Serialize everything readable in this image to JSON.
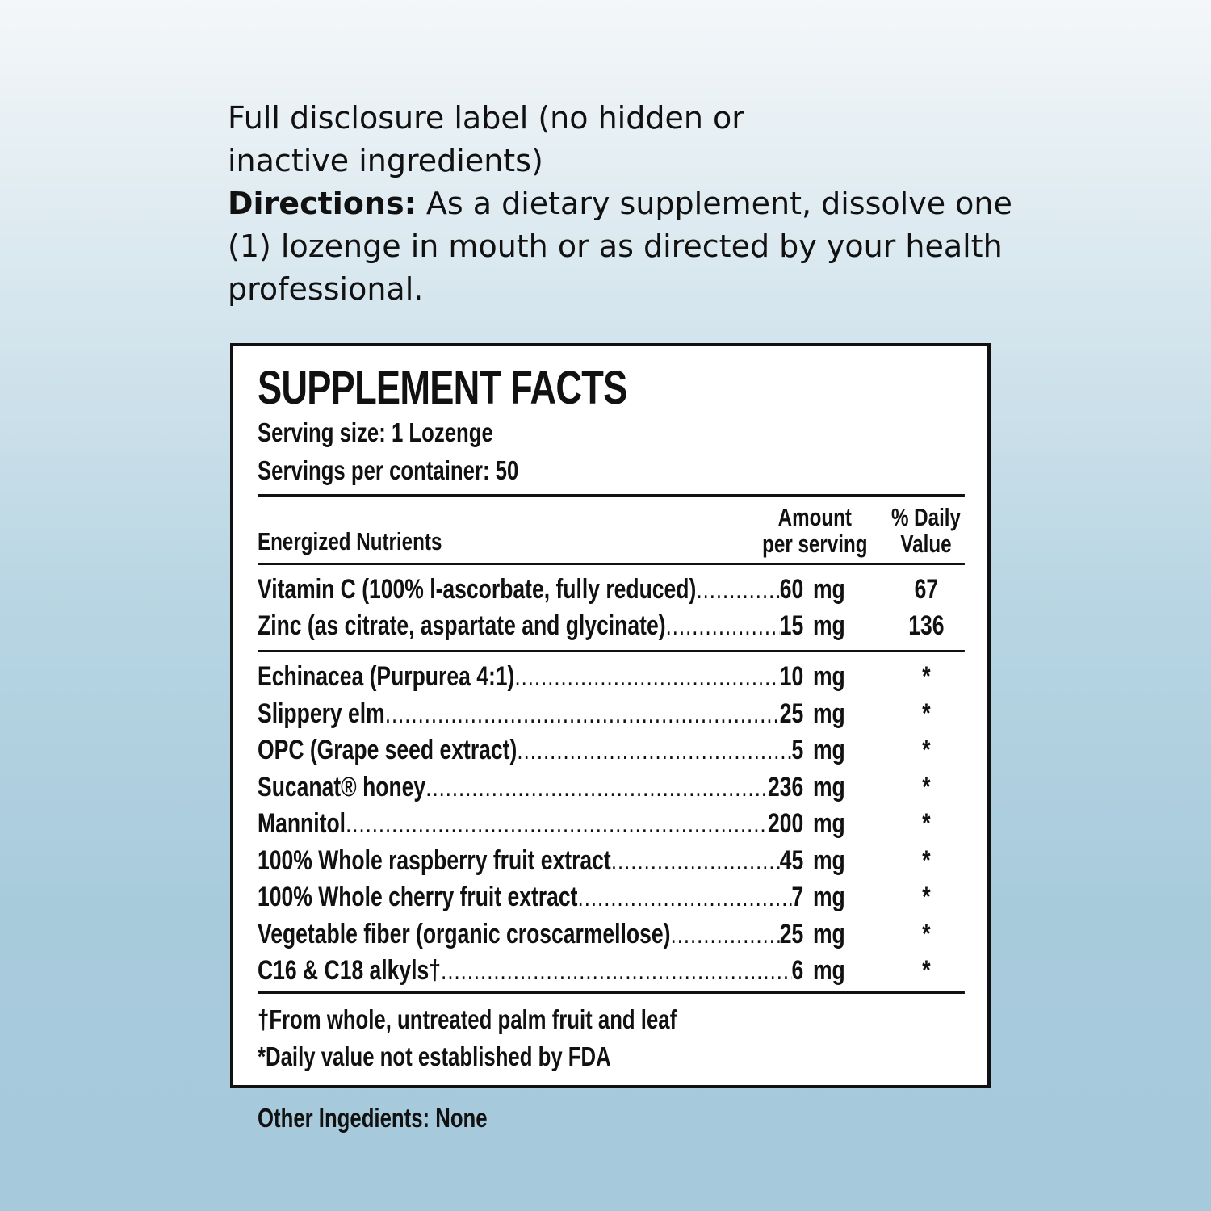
{
  "intro": {
    "line1": "Full disclosure label (no hidden or inactive ingredients)",
    "directions_label": "Directions:",
    "directions_text": " As a dietary supplement, dissolve one (1) lozenge in mouth or as directed by your health professional."
  },
  "facts": {
    "title": "SUPPLEMENT FACTS",
    "serving_size": "Serving size:  1 Lozenge",
    "servings_per_container": "Servings per container: 50",
    "headers": {
      "nutrients": "Energized Nutrients",
      "amount_line1": "Amount",
      "amount_line2": "per serving",
      "dv_line1": "% Daily",
      "dv_line2": "Value"
    },
    "group1": [
      {
        "name": "Vitamin C (100% l-ascorbate, fully reduced)",
        "amount": "60",
        "unit": "mg",
        "dv": "67"
      },
      {
        "name": "Zinc (as citrate, aspartate and glycinate)",
        "amount": "15",
        "unit": "mg",
        "dv": "136"
      }
    ],
    "group2": [
      {
        "name": "Echinacea (Purpurea 4:1)",
        "amount": "10",
        "unit": "mg",
        "dv": "*"
      },
      {
        "name": "Slippery elm",
        "amount": "25",
        "unit": "mg",
        "dv": "*"
      },
      {
        "name": "OPC (Grape seed extract)",
        "amount": "5",
        "unit": "mg",
        "dv": "*"
      },
      {
        "name": "Sucanat® honey",
        "amount": "236",
        "unit": "mg",
        "dv": "*"
      },
      {
        "name": "Mannitol",
        "amount": "200",
        "unit": "mg",
        "dv": "*"
      },
      {
        "name": "100% Whole raspberry fruit extract",
        "amount": "45",
        "unit": "mg",
        "dv": "*"
      },
      {
        "name": "100% Whole cherry fruit extract",
        "amount": "7",
        "unit": "mg",
        "dv": "*"
      },
      {
        "name": "Vegetable fiber (organic croscarmellose)",
        "amount": "25",
        "unit": "mg",
        "dv": "*"
      },
      {
        "name": "C16 & C18 alkyls†",
        "amount": "6",
        "unit": "mg",
        "dv": "*"
      }
    ],
    "footnotes": [
      "†From whole, untreated palm fruit and leaf",
      "*Daily value not established by FDA"
    ]
  },
  "other_ingredients": "Other Ingedients: None"
}
